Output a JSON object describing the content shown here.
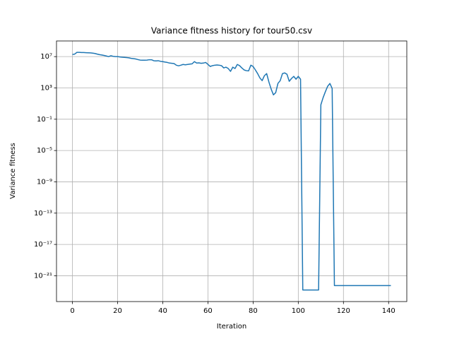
{
  "chart_data": {
    "type": "line",
    "title": "Variance fitness history for tour50.csv",
    "x_label": "Iteration",
    "y_label": "Variance fitness",
    "log_y": true,
    "grid": true,
    "xlim": [
      -7.05,
      148.05
    ],
    "ylim": [
      5e-25,
      1000000000.0
    ],
    "xticks": [
      0,
      20,
      40,
      60,
      80,
      100,
      120,
      140
    ],
    "yticks": [
      {
        "value": 10000000.0,
        "label": "10⁷"
      },
      {
        "value": 1000.0,
        "label": "10³"
      },
      {
        "value": 0.1,
        "label": "10⁻¹"
      },
      {
        "value": 1e-05,
        "label": "10⁻⁵"
      },
      {
        "value": 1e-09,
        "label": "10⁻⁹"
      },
      {
        "value": 1e-13,
        "label": "10⁻¹³"
      },
      {
        "value": 1e-17,
        "label": "10⁻¹⁷"
      },
      {
        "value": 1e-21,
        "label": "10⁻²¹"
      }
    ],
    "series": [
      {
        "color": "#1f77b4",
        "values": [
          19000000.0,
          21000000.0,
          35000000.0,
          35000000.0,
          33000000.0,
          33000000.0,
          32000000.0,
          31000000.0,
          30000000.0,
          28000000.0,
          25000000.0,
          21000000.0,
          18000000.0,
          16000000.0,
          14000000.0,
          12000000.0,
          10000000.0,
          13000000.0,
          11000000.0,
          10000000.0,
          10000000.0,
          9000000.0,
          8500000.0,
          8000000.0,
          7500000.0,
          7000000.0,
          6000000.0,
          5500000.0,
          5000000.0,
          4200000.0,
          3600000.0,
          3500000.0,
          3500000.0,
          3600000.0,
          4000000.0,
          4000000.0,
          3000000.0,
          2800000.0,
          3000000.0,
          2500000.0,
          2300000.0,
          2000000.0,
          1800000.0,
          1500000.0,
          1400000.0,
          1300000.0,
          800000.0,
          670000.0,
          800000.0,
          1000000.0,
          900000.0,
          1000000.0,
          1100000.0,
          1200000.0,
          2300000.0,
          1500000.0,
          1600000.0,
          1400000.0,
          1500000.0,
          1800000.0,
          1000000.0,
          550000.0,
          700000.0,
          800000.0,
          850000.0,
          800000.0,
          700000.0,
          360000.0,
          450000.0,
          300000.0,
          130000.0,
          450000.0,
          300000.0,
          1000000.0,
          700000.0,
          360000.0,
          200000.0,
          160000.0,
          150000.0,
          800000.0,
          550000.0,
          200000.0,
          68000.0,
          19000.0,
          8500.0,
          36000.0,
          68000.0,
          5600.0,
          700,
          130,
          250,
          3800,
          8500,
          68000.0,
          83000.0,
          55000.0,
          7000,
          16000.0,
          30000.0,
          13000.0,
          30000.0,
          13000.0,
          1.5e-23,
          1.5e-23,
          1.5e-23,
          1.5e-23,
          1.5e-23,
          1.5e-23,
          1.5e-23,
          1.5e-23,
          7,
          58,
          330,
          1600,
          3700,
          860,
          5.5e-23,
          5.5e-23,
          5.5e-23,
          5.5e-23,
          5.5e-23,
          5.5e-23,
          5.5e-23,
          5.5e-23,
          5.5e-23,
          5.5e-23,
          5.5e-23,
          5.5e-23,
          5.5e-23,
          5.5e-23,
          5.5e-23,
          5.5e-23,
          5.5e-23,
          5.5e-23,
          5.5e-23,
          5.5e-23,
          5.5e-23,
          5.5e-23,
          5.5e-23,
          5.5e-23,
          5.5e-23,
          5.5e-23
        ]
      }
    ]
  }
}
